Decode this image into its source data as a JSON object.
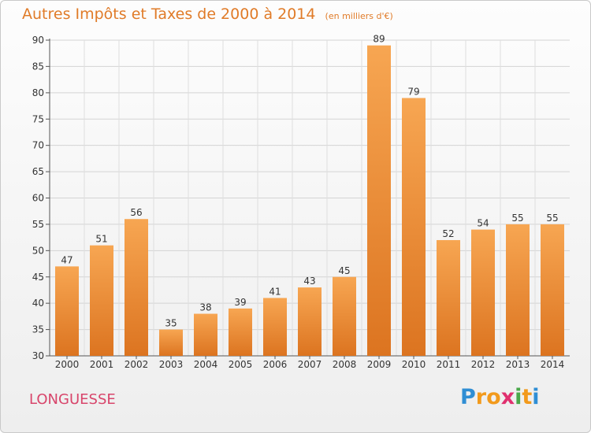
{
  "chart_data": {
    "type": "bar",
    "title": "Autres Impôts et Taxes de 2000 à 2014",
    "subtitle": "(en milliers d'€)",
    "categories": [
      "2000",
      "2001",
      "2002",
      "2003",
      "2004",
      "2005",
      "2006",
      "2007",
      "2008",
      "2009",
      "2010",
      "2011",
      "2012",
      "2013",
      "2014"
    ],
    "values": [
      47,
      51,
      56,
      35,
      38,
      39,
      41,
      43,
      45,
      89,
      79,
      52,
      54,
      55,
      55
    ],
    "ylim": [
      30,
      90
    ],
    "yticks": [
      30,
      35,
      40,
      45,
      50,
      55,
      60,
      65,
      70,
      75,
      80,
      85,
      90
    ],
    "grid": true,
    "bar_color": "#f0922e"
  },
  "commune": "LONGUESSE",
  "logo": {
    "letters": [
      "P",
      "r",
      "o",
      "x",
      "i",
      "t",
      "i"
    ],
    "colors": [
      "#2f8ed4",
      "#f29a1c",
      "#f29a1c",
      "#e0306f",
      "#4aa84a",
      "#f29a1c",
      "#2f8ed4"
    ]
  }
}
